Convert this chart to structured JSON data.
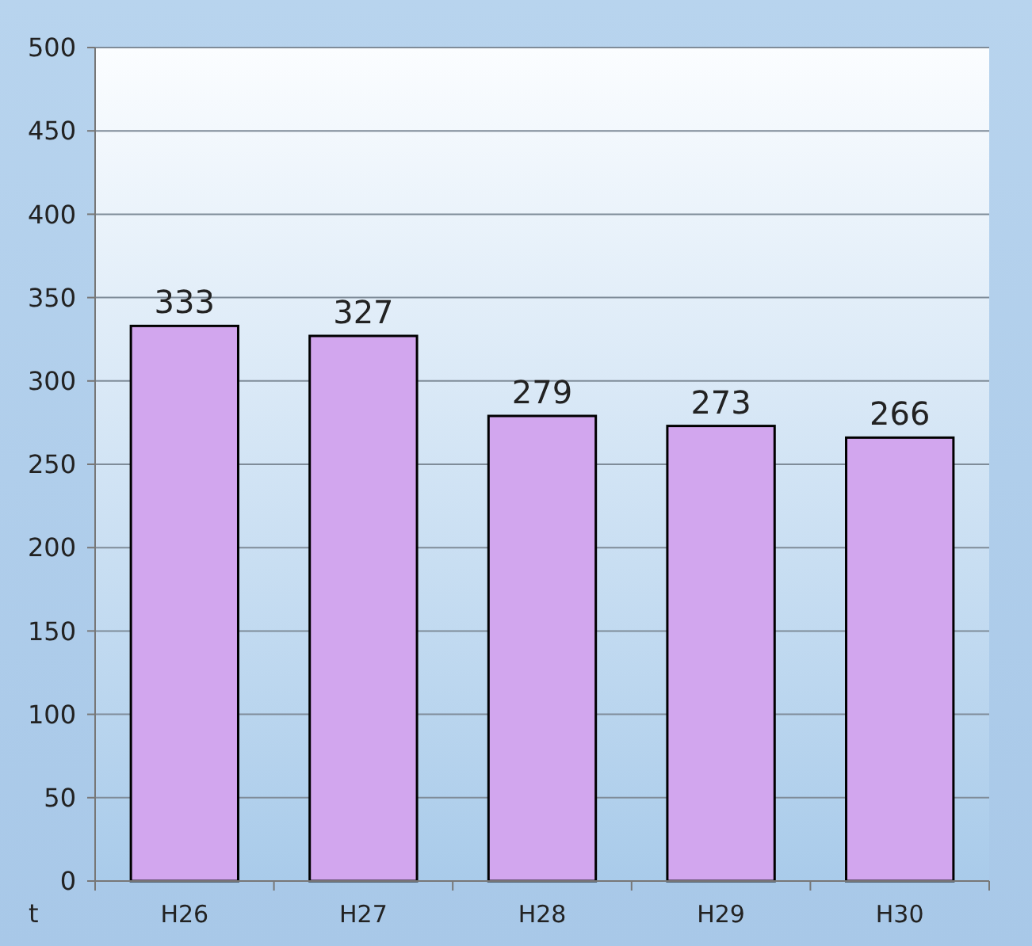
{
  "chart_data": {
    "type": "bar",
    "ylabel": "t",
    "categories": [
      "H26",
      "H27",
      "H28",
      "H29",
      "H30"
    ],
    "values": [
      333,
      327,
      279,
      273,
      266
    ],
    "color": "#d2a6ee",
    "ylim": [
      0,
      500
    ],
    "yticks": [
      0,
      50,
      100,
      150,
      200,
      250,
      300,
      350,
      400,
      450,
      500
    ],
    "grid": "y",
    "data_labels": true
  }
}
